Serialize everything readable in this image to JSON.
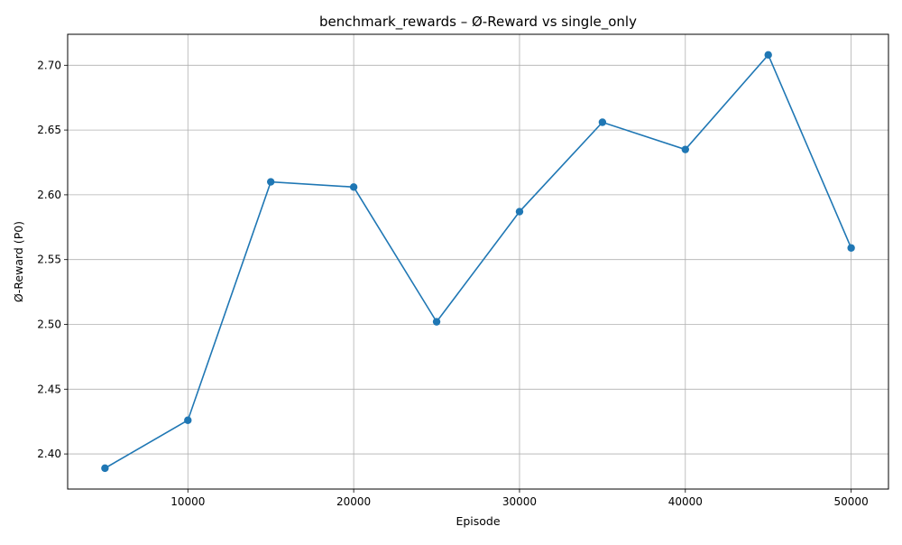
{
  "chart_data": {
    "type": "line",
    "title": "benchmark_rewards – Ø-Reward vs single_only",
    "xlabel": "Episode",
    "ylabel": "Ø-Reward (P0)",
    "x": [
      5000,
      10000,
      15000,
      20000,
      25000,
      30000,
      35000,
      40000,
      45000,
      50000
    ],
    "series": [
      {
        "values": [
          2.389,
          2.426,
          2.61,
          2.606,
          2.502,
          2.587,
          2.656,
          2.635,
          2.708,
          2.559
        ]
      }
    ],
    "xticks": [
      10000,
      20000,
      30000,
      40000,
      50000
    ],
    "yticks": [
      2.4,
      2.45,
      2.5,
      2.55,
      2.6,
      2.65,
      2.7
    ],
    "xlim": [
      2750,
      52250
    ],
    "ylim": [
      2.3729,
      2.7239
    ],
    "grid": true,
    "legend": "none",
    "line_color": "#1f77b4",
    "marker": "circle",
    "grid_color": "#b0b0b0"
  }
}
